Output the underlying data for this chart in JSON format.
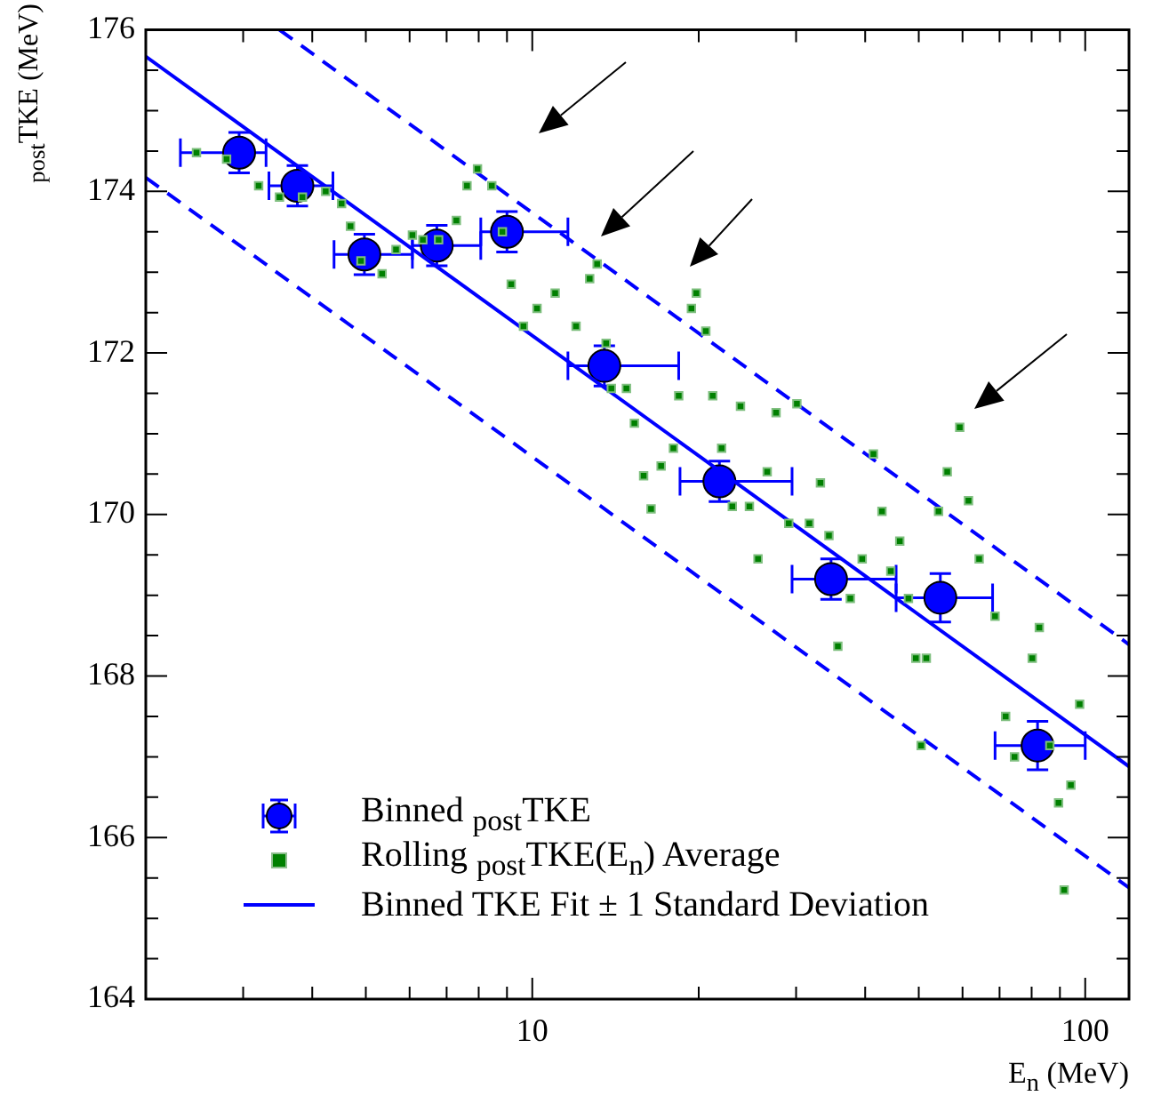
{
  "chart_data": {
    "type": "scatter",
    "xlabel": "E$_{n}$ (MeV)",
    "ylabel": "$_{post}$TKE (MeV)",
    "log": "x",
    "legend": "bottom left",
    "xlim": [
      2,
      120
    ],
    "ylim": [
      164,
      176
    ],
    "xticks": [
      {
        "value": 2,
        "label": null
      },
      {
        "value": 3,
        "label": null
      },
      {
        "value": 4,
        "label": null
      },
      {
        "value": 5,
        "label": null
      },
      {
        "value": 6,
        "label": null
      },
      {
        "value": 7,
        "label": null
      },
      {
        "value": 8,
        "label": null
      },
      {
        "value": 9,
        "label": null
      },
      10,
      {
        "value": 20,
        "label": null
      },
      {
        "value": 30,
        "label": null
      },
      {
        "value": 40,
        "label": null
      },
      {
        "value": 50,
        "label": null
      },
      {
        "value": 60,
        "label": null
      },
      {
        "value": 70,
        "label": null
      },
      {
        "value": 80,
        "label": null
      },
      {
        "value": 90,
        "label": null
      },
      100
    ],
    "yticks": [
      164,
      {
        "value": 164.5,
        "label": null
      },
      {
        "value": 165,
        "label": null
      },
      {
        "value": 165.5,
        "label": null
      },
      166,
      {
        "value": 166.5,
        "label": null
      },
      {
        "value": 167,
        "label": null
      },
      {
        "value": 167.5,
        "label": null
      },
      168,
      {
        "value": 168.5,
        "label": null
      },
      {
        "value": 169,
        "label": null
      },
      {
        "value": 169.5,
        "label": null
      },
      170,
      {
        "value": 170.5,
        "label": null
      },
      {
        "value": 171,
        "label": null
      },
      {
        "value": 171.5,
        "label": null
      },
      172,
      {
        "value": 172.5,
        "label": null
      },
      {
        "value": 173,
        "label": null
      },
      {
        "value": 173.5,
        "label": null
      },
      174,
      {
        "value": 174.5,
        "label": null
      },
      {
        "value": 175,
        "label": null
      },
      {
        "value": 175.5,
        "label": null
      },
      176
    ],
    "series": [
      {
        "name": "Binned $_{post}$TKE",
        "type": "scatter",
        "marker": "circle",
        "color": "#0000ff",
        "x": [
          2.95,
          3.76,
          4.97,
          6.72,
          9.0,
          13.5,
          21.8,
          34.7,
          54.7,
          82
        ],
        "values": [
          174.48,
          174.07,
          173.22,
          173.33,
          173.5,
          171.84,
          170.41,
          169.2,
          168.97,
          167.14
        ],
        "errors": [
          0.25,
          0.25,
          0.25,
          0.25,
          0.25,
          0.25,
          0.25,
          0.25,
          0.3,
          0.3
        ],
        "xerrors": [
          [
            2.31,
            3.3
          ],
          [
            3.34,
            4.36
          ],
          [
            4.38,
            6.07
          ],
          [
            6.07,
            8.07
          ],
          [
            8.07,
            11.6
          ],
          [
            11.6,
            18.4
          ],
          [
            18.5,
            29.5
          ],
          [
            29.5,
            45.5
          ],
          [
            45.5,
            68
          ],
          [
            68.7,
            100
          ]
        ]
      },
      {
        "name": "Rolling $_{post}$TKE(E$_{n}$) Average",
        "type": "scatter",
        "marker": "square",
        "color": "#008000",
        "x": [
          2.47,
          2.8,
          3.2,
          3.49,
          3.84,
          4.23,
          4.52,
          4.69,
          4.9,
          5.35,
          5.67,
          6.07,
          6.34,
          6.77,
          7.29,
          7.62,
          7.96,
          8.45,
          8.83,
          9.16,
          9.64,
          10.2,
          11.0,
          12.0,
          12.7,
          13.1,
          13.6,
          13.9,
          14.8,
          15.3,
          15.9,
          16.4,
          17.1,
          18.0,
          18.4,
          19.4,
          19.8,
          20.6,
          21.2,
          22.0,
          23.0,
          23.8,
          24.7,
          25.6,
          26.6,
          27.6,
          29.1,
          30.1,
          31.7,
          33.2,
          34.4,
          35.7,
          37.6,
          39.5,
          41.4,
          42.9,
          44.5,
          46.2,
          47.9,
          49.4,
          50.5,
          51.6,
          54.3,
          56.3,
          59.3,
          61.5,
          64.3,
          68.7,
          71.8,
          74.5,
          80.2,
          82.6,
          86.3,
          89.5,
          91.6,
          94.2,
          97.7
        ],
        "values": [
          174.48,
          174.4,
          174.07,
          173.93,
          173.93,
          174.0,
          173.85,
          173.57,
          173.14,
          172.98,
          173.28,
          173.46,
          173.4,
          173.4,
          173.64,
          174.07,
          174.28,
          174.07,
          173.5,
          172.85,
          172.33,
          172.55,
          172.74,
          172.33,
          172.92,
          173.1,
          172.12,
          171.56,
          171.56,
          171.13,
          170.48,
          170.07,
          170.6,
          170.82,
          171.47,
          172.55,
          172.74,
          172.27,
          171.47,
          170.82,
          170.1,
          171.34,
          170.1,
          169.45,
          170.53,
          171.26,
          169.89,
          171.37,
          169.89,
          170.39,
          169.74,
          168.37,
          168.96,
          169.45,
          170.75,
          170.04,
          169.3,
          169.67,
          168.96,
          168.22,
          167.14,
          168.22,
          170.04,
          170.53,
          171.08,
          170.17,
          169.45,
          168.74,
          167.5,
          167.0,
          168.22,
          168.6,
          167.14,
          166.43,
          165.35,
          166.65,
          167.65
        ]
      },
      {
        "name": "Binned TKE Fit ± 1 Standard Deviation",
        "type": "line",
        "marker": "none",
        "line_style": "solid",
        "color": "#0000ff",
        "x": [
          2,
          120
        ],
        "values": [
          175.67,
          166.88
        ]
      },
      {
        "type": "line",
        "marker": "none",
        "line_style": "dashed",
        "color": "#0000ff",
        "x": [
          3.49,
          120
        ],
        "values": [
          176,
          168.39
        ]
      },
      {
        "type": "line",
        "marker": "none",
        "line_style": "dashed",
        "color": "#0000ff",
        "x": [
          2,
          120
        ],
        "values": [
          174.17,
          165.38
        ]
      }
    ]
  }
}
